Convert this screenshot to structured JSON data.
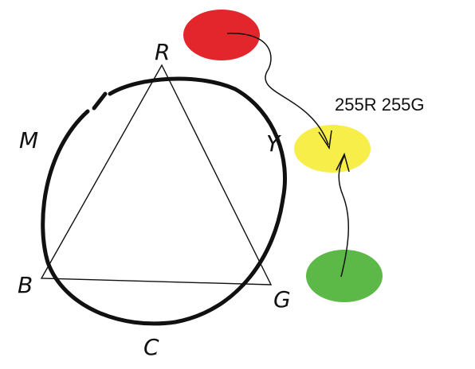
{
  "labels": {
    "R": "R",
    "Y": "Y",
    "M": "M",
    "B": "B",
    "G": "G",
    "C": "C"
  },
  "mix_label": "255R 255G",
  "colors": {
    "red": "#e3262c",
    "yellow": "#f7ee4a",
    "green": "#5cb847",
    "stroke": "#111111"
  }
}
